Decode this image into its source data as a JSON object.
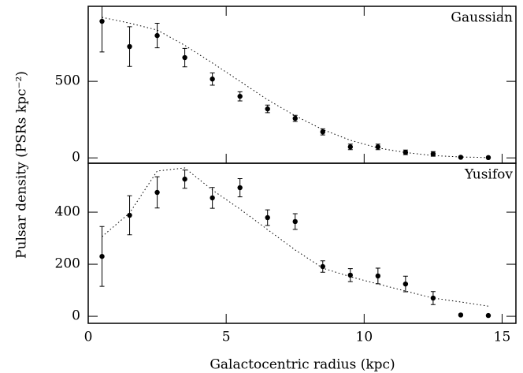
{
  "chart_data": [
    {
      "type": "scatter",
      "title": "Gaussian",
      "x": [
        0.5,
        1.5,
        2.5,
        3.5,
        4.5,
        5.5,
        6.5,
        7.5,
        8.5,
        9.5,
        10.5,
        11.5,
        12.5,
        13.5,
        14.5
      ],
      "values": [
        892,
        727,
        799,
        655,
        515,
        402,
        320,
        258,
        170,
        72,
        72,
        36,
        26,
        4,
        2
      ],
      "errors": [
        200,
        130,
        80,
        60,
        40,
        30,
        25,
        20,
        20,
        18,
        18,
        15,
        15,
        0,
        0
      ],
      "model": [
        918,
        880,
        835,
        735,
        620,
        500,
        380,
        275,
        185,
        115,
        65,
        35,
        15,
        6,
        2
      ],
      "xlim": [
        0,
        15.5
      ],
      "ylim": [
        -35,
        990
      ],
      "yticks": [
        0,
        500
      ]
    },
    {
      "type": "scatter",
      "title": "Yusifov",
      "x": [
        0.5,
        1.5,
        2.5,
        3.5,
        4.5,
        5.5,
        6.5,
        7.5,
        8.5,
        9.5,
        10.5,
        11.5,
        12.5,
        13.5,
        14.5
      ],
      "values": [
        230,
        388,
        476,
        527,
        455,
        494,
        379,
        364,
        191,
        158,
        155,
        124,
        70,
        5,
        3
      ],
      "errors": [
        115,
        75,
        60,
        35,
        40,
        35,
        30,
        30,
        22,
        25,
        30,
        30,
        25,
        0,
        0
      ],
      "model": [
        306,
        397,
        558,
        570,
        485,
        412,
        333,
        255,
        185,
        152,
        124,
        97,
        70,
        55,
        39
      ],
      "xlim": [
        0,
        15.5
      ],
      "ylim": [
        -27,
        588
      ],
      "yticks": [
        0,
        200,
        400
      ],
      "xticks": [
        0,
        5,
        10,
        15
      ],
      "xlabel": "Galactocentric radius (kpc)",
      "ylabel": "Pulsar density (PSRs kpc⁻²)"
    }
  ]
}
